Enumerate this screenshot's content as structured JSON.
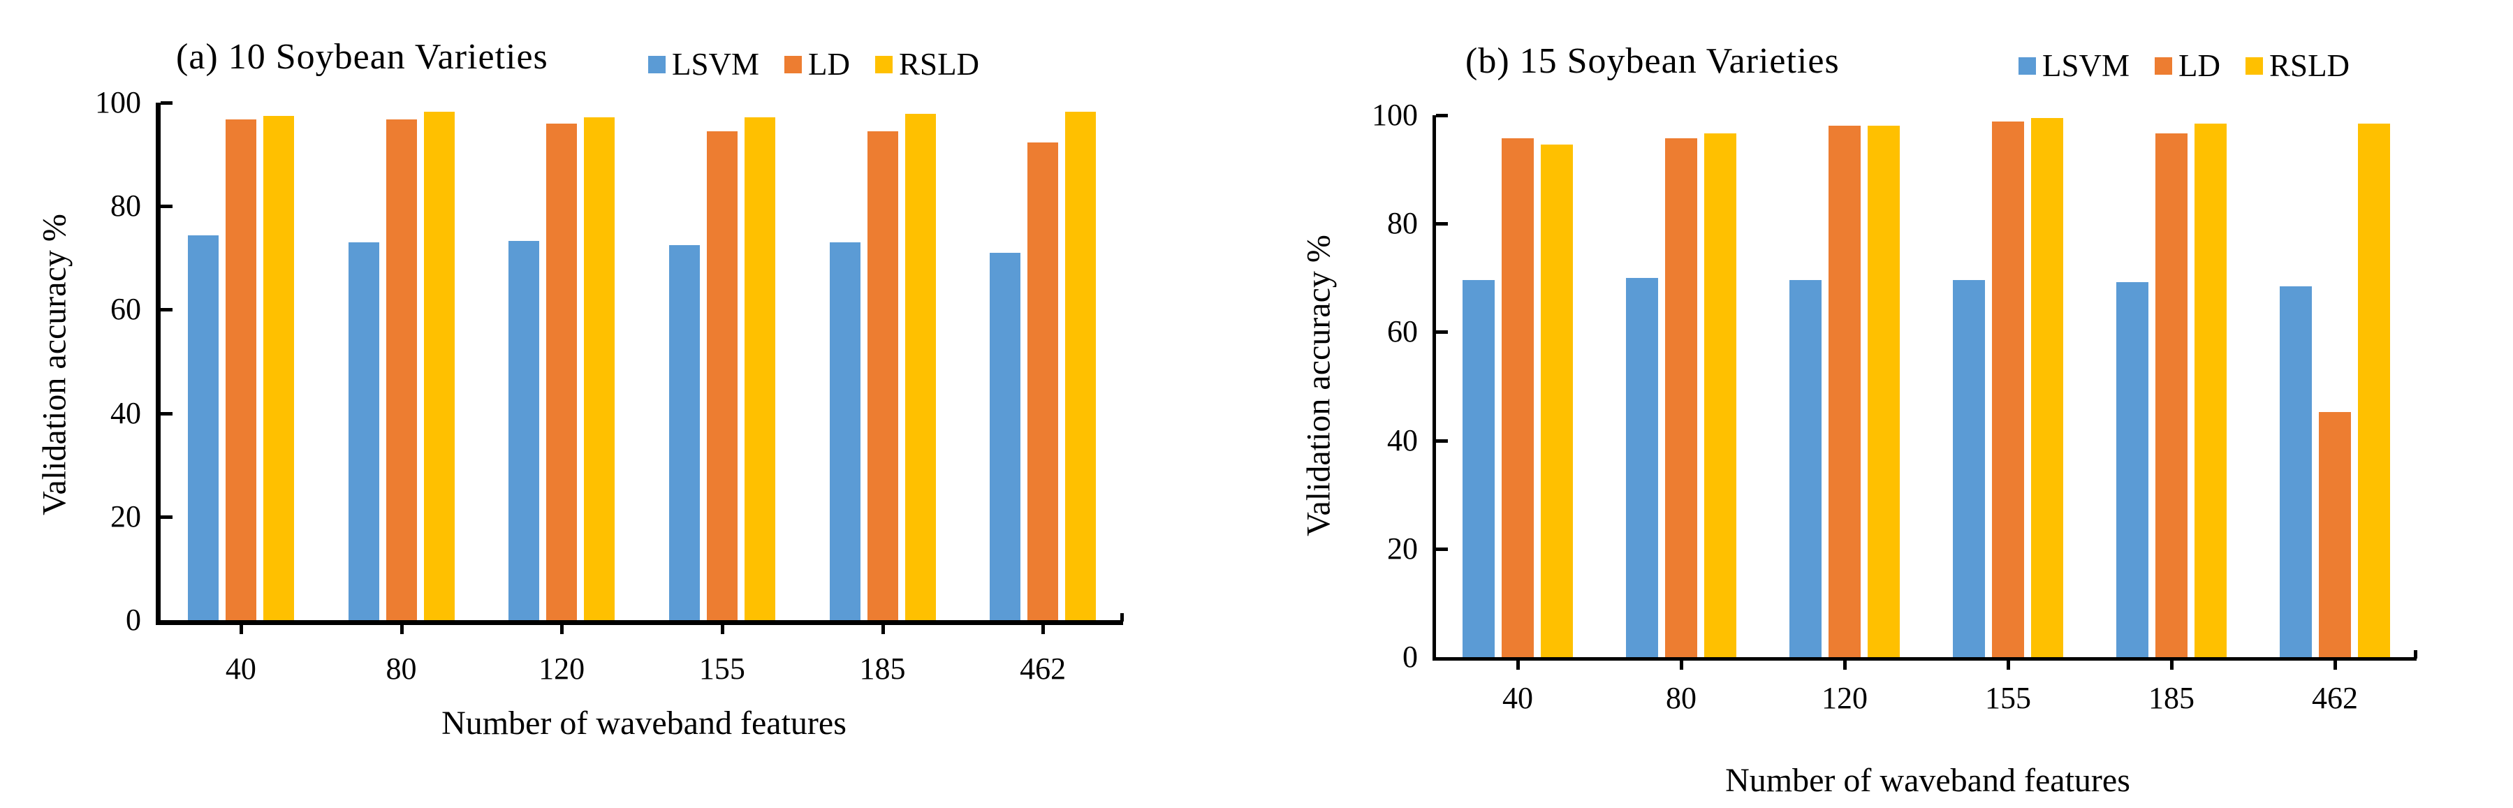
{
  "chart_data": [
    {
      "type": "bar",
      "title": "(a) 10 Soybean Varieties",
      "xlabel": "Number of waveband features",
      "ylabel": "Validation accuracy %",
      "ylim": [
        0,
        100
      ],
      "yticks": [
        0,
        20,
        40,
        60,
        80,
        100
      ],
      "grid": false,
      "legend_position": "top",
      "categories": [
        "40",
        "80",
        "120",
        "155",
        "185",
        "462"
      ],
      "series": [
        {
          "name": "LSVM",
          "color": "#5B9BD5",
          "values": [
            74.3,
            73.0,
            73.3,
            72.5,
            73.0,
            71.0
          ]
        },
        {
          "name": "LD",
          "color": "#ED7D31",
          "values": [
            96.7,
            96.7,
            96.0,
            94.5,
            94.5,
            92.3
          ]
        },
        {
          "name": "RSLD",
          "color": "#FFC000",
          "values": [
            97.5,
            98.2,
            97.1,
            97.1,
            97.9,
            98.3
          ]
        }
      ]
    },
    {
      "type": "bar",
      "title": "(b) 15 Soybean Varieties",
      "xlabel": "Number of waveband features",
      "ylabel": "Validation accuracy %",
      "ylim": [
        0,
        100
      ],
      "yticks": [
        0,
        20,
        40,
        60,
        80,
        100
      ],
      "grid": false,
      "legend_position": "top",
      "categories": [
        "40",
        "80",
        "120",
        "155",
        "185",
        "462"
      ],
      "series": [
        {
          "name": "LSVM",
          "color": "#5B9BD5",
          "values": [
            69.6,
            70.0,
            69.6,
            69.6,
            69.2,
            68.4
          ]
        },
        {
          "name": "LD",
          "color": "#ED7D31",
          "values": [
            95.7,
            95.8,
            98.1,
            98.8,
            96.6,
            45.2
          ]
        },
        {
          "name": "RSLD",
          "color": "#FFC000",
          "values": [
            94.6,
            96.6,
            98.1,
            99.5,
            98.5,
            98.5
          ]
        }
      ]
    }
  ]
}
